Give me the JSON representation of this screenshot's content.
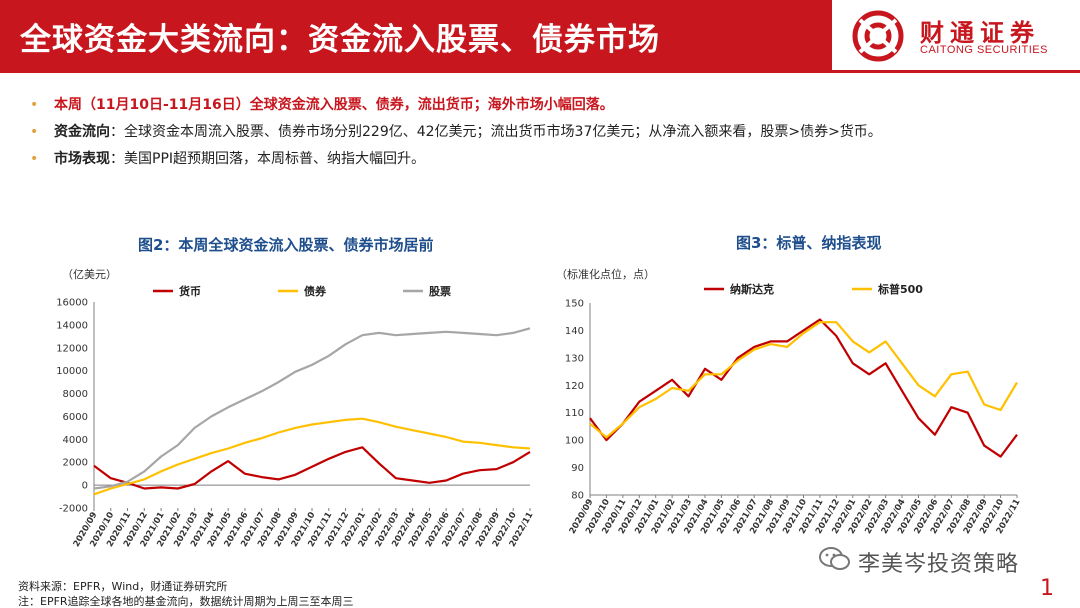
{
  "header": {
    "title": "全球资金大类流向：资金流入股票、债券市场",
    "logo_cn": "财通证券",
    "logo_en": "CAITONG SECURITIES"
  },
  "bullets": [
    {
      "lead": "本周（11月10日-11月16日）全球资金流入股票、债券，流出货币；海外市场小幅回落。",
      "text": ""
    },
    {
      "lead": "资金流向",
      "text": "：全球资金本周流入股票、债券市场分别229亿、42亿美元；流出货币市场37亿美元；从净流入额来看，股票>债券>货币。"
    },
    {
      "lead": "市场表现",
      "text": "：美国PPI超预期回落，本周标普、纳指大幅回升。"
    }
  ],
  "colors": {
    "red": "#c00000",
    "gold": "#ffc000",
    "gray": "#a6a6a6",
    "brand": "#c8161e",
    "title_blue": "#1f4e8c"
  },
  "chart_data": [
    {
      "type": "line",
      "title": "图2：本周全球资金流入股票、债券市场居前",
      "ylabel": "（亿美元）",
      "ylim": [
        -2000,
        16000
      ],
      "yticks": [
        -2000,
        0,
        2000,
        4000,
        6000,
        8000,
        10000,
        12000,
        14000,
        16000
      ],
      "x": [
        "2020/09",
        "2020/10",
        "2020/11",
        "2020/12",
        "2021/01",
        "2021/02",
        "2021/03",
        "2021/04",
        "2021/05",
        "2021/06",
        "2021/07",
        "2021/08",
        "2021/09",
        "2021/10",
        "2021/11",
        "2021/12",
        "2022/01",
        "2022/02",
        "2022/03",
        "2022/04",
        "2022/05",
        "2022/06",
        "2022/07",
        "2022/08",
        "2022/09",
        "2022/10",
        "2022/11"
      ],
      "legend": [
        "货币",
        "债券",
        "股票"
      ],
      "series": [
        {
          "name": "货币",
          "color": "#c00000",
          "values": [
            1700,
            600,
            200,
            -300,
            -200,
            -300,
            100,
            1200,
            2100,
            1000,
            700,
            500,
            900,
            1600,
            2300,
            2900,
            3300,
            1900,
            600,
            400,
            200,
            400,
            1000,
            1300,
            1400,
            2000,
            2900
          ]
        },
        {
          "name": "债券",
          "color": "#ffc000",
          "values": [
            -800,
            -300,
            100,
            500,
            1200,
            1800,
            2300,
            2800,
            3200,
            3700,
            4100,
            4600,
            5000,
            5300,
            5500,
            5700,
            5800,
            5500,
            5100,
            4800,
            4500,
            4200,
            3800,
            3700,
            3500,
            3300,
            3200
          ]
        },
        {
          "name": "股票",
          "color": "#a6a6a6",
          "values": [
            -300,
            -100,
            300,
            1200,
            2500,
            3500,
            5000,
            6000,
            6800,
            7500,
            8200,
            9000,
            9900,
            10500,
            11300,
            12300,
            13100,
            13300,
            13100,
            13200,
            13300,
            13400,
            13300,
            13200,
            13100,
            13300,
            13700
          ]
        }
      ]
    },
    {
      "type": "line",
      "title": "图3：标普、纳指表现",
      "ylabel": "（标准化点位，点）",
      "ylim": [
        80,
        150
      ],
      "yticks": [
        80,
        90,
        100,
        110,
        120,
        130,
        140,
        150
      ],
      "x": [
        "2020/09",
        "2020/10",
        "2020/11",
        "2020/12",
        "2021/01",
        "2021/02",
        "2021/03",
        "2021/04",
        "2021/05",
        "2021/06",
        "2021/07",
        "2021/08",
        "2021/09",
        "2021/10",
        "2021/11",
        "2021/12",
        "2022/01",
        "2022/02",
        "2022/03",
        "2022/04",
        "2022/05",
        "2022/06",
        "2022/07",
        "2022/08",
        "2022/09",
        "2022/10",
        "2022/11"
      ],
      "legend": [
        "纳斯达克",
        "标普500"
      ],
      "series": [
        {
          "name": "纳斯达克",
          "color": "#c00000",
          "values": [
            108,
            100,
            106,
            114,
            118,
            122,
            116,
            126,
            122,
            130,
            134,
            136,
            136,
            140,
            144,
            138,
            128,
            124,
            128,
            118,
            108,
            102,
            112,
            110,
            98,
            94,
            102
          ]
        },
        {
          "name": "标普500",
          "color": "#ffc000",
          "values": [
            106,
            101,
            106,
            112,
            115,
            119,
            118,
            124,
            124,
            129,
            133,
            135,
            134,
            139,
            143,
            143,
            136,
            132,
            136,
            128,
            120,
            116,
            124,
            125,
            113,
            111,
            121
          ]
        }
      ]
    }
  ],
  "footer": {
    "source": "资料来源：EPFR，Wind，财通证券研究所",
    "note": "注：EPFR追踪全球各地的基金流向，数据统计周期为上周三至本周三",
    "watermark": "李美岑投资策略",
    "page": "1"
  }
}
